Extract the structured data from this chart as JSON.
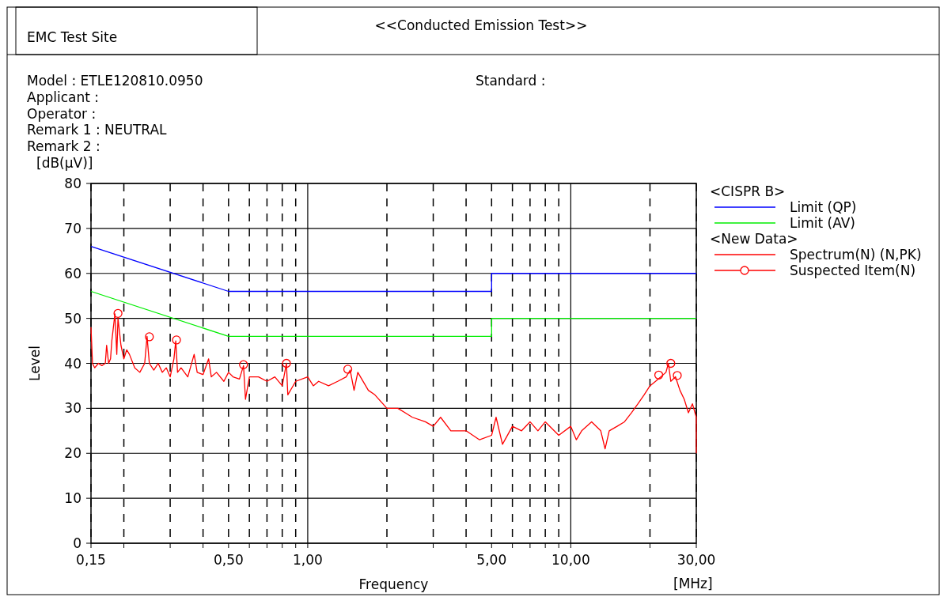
{
  "chart_data": {
    "type": "line",
    "title": "<<Conducted Emission Test>>",
    "xlabel": "Frequency",
    "ylabel": "Level",
    "log": "x",
    "grid": true,
    "legend": "right",
    "xlim": [
      0.15,
      30
    ],
    "ylim": [
      0,
      80
    ],
    "xticks": [
      {
        "value": 0.15,
        "label": "0,15"
      },
      {
        "value": 0.2,
        "label": null
      },
      {
        "value": 0.3,
        "label": null
      },
      {
        "value": 0.4,
        "label": null
      },
      {
        "value": 0.5,
        "label": "0,50"
      },
      {
        "value": 0.6,
        "label": null
      },
      {
        "value": 0.7,
        "label": null
      },
      {
        "value": 0.8,
        "label": null
      },
      {
        "value": 0.9,
        "label": null
      },
      {
        "value": 1,
        "label": "1,00"
      },
      {
        "value": 2,
        "label": null
      },
      {
        "value": 3,
        "label": null
      },
      {
        "value": 4,
        "label": null
      },
      {
        "value": 5,
        "label": "5,00"
      },
      {
        "value": 6,
        "label": null
      },
      {
        "value": 7,
        "label": null
      },
      {
        "value": 8,
        "label": null
      },
      {
        "value": 9,
        "label": null
      },
      {
        "value": 10,
        "label": "10,00"
      },
      {
        "value": 20,
        "label": null
      },
      {
        "value": 30,
        "label": "30,00"
      }
    ],
    "yticks": [
      0,
      10,
      20,
      30,
      40,
      50,
      60,
      70,
      80
    ],
    "annotations": [
      "EMC Test Site",
      "Model : ETLE120810.0950",
      "Applicant :",
      "Operator :",
      "Remark 1 : NEUTRAL",
      "Remark 2 :",
      "Standard :",
      "[dB(μV)]",
      "[MHz]",
      "<CISPR B>",
      "<New Data>"
    ],
    "series": [
      {
        "name": "Limit (QP)",
        "color": "#0000ff",
        "x": [
          0.15,
          0.5,
          5,
          5,
          30
        ],
        "values": [
          66,
          56,
          56,
          60,
          60
        ]
      },
      {
        "name": "Limit (AV)",
        "color": "#00ee00",
        "x": [
          0.15,
          0.5,
          5,
          5,
          30
        ],
        "values": [
          56,
          46,
          46,
          50,
          50
        ]
      },
      {
        "name": "Spectrum(N) (N,PK)",
        "color": "#ff0000",
        "x": [
          0.15,
          0.152,
          0.155,
          0.16,
          0.165,
          0.17,
          0.172,
          0.175,
          0.178,
          0.18,
          0.185,
          0.188,
          0.19,
          0.195,
          0.2,
          0.205,
          0.21,
          0.22,
          0.23,
          0.24,
          0.245,
          0.25,
          0.26,
          0.27,
          0.28,
          0.29,
          0.3,
          0.31,
          0.315,
          0.32,
          0.33,
          0.35,
          0.37,
          0.38,
          0.4,
          0.42,
          0.43,
          0.45,
          0.48,
          0.5,
          0.52,
          0.55,
          0.57,
          0.58,
          0.6,
          0.65,
          0.7,
          0.75,
          0.8,
          0.83,
          0.84,
          0.9,
          1.0,
          1.05,
          1.1,
          1.2,
          1.3,
          1.4,
          1.45,
          1.5,
          1.55,
          1.7,
          1.8,
          2.0,
          2.2,
          2.5,
          2.8,
          3.0,
          3.2,
          3.5,
          4.0,
          4.5,
          5.0,
          5.2,
          5.5,
          6.0,
          6.5,
          7.0,
          7.5,
          8.0,
          9.0,
          10,
          10.5,
          11,
          12,
          13,
          13.5,
          14,
          15,
          16,
          17,
          18,
          19,
          20,
          21,
          22,
          23,
          23.5,
          24,
          25,
          26,
          27,
          28,
          29,
          30,
          30
        ],
        "values": [
          48,
          40,
          39,
          40,
          39.5,
          40,
          44,
          40,
          41,
          45,
          51,
          42,
          50,
          44,
          41,
          43,
          42,
          39,
          38,
          40,
          46,
          40,
          38.5,
          40,
          38,
          39,
          37,
          41,
          45,
          38,
          39,
          37,
          42,
          38,
          37.5,
          41,
          37,
          38,
          36,
          38,
          37,
          36.5,
          39.5,
          32,
          37,
          37,
          36,
          37,
          35,
          40,
          33,
          36,
          37,
          35,
          36,
          35,
          36,
          37,
          38.5,
          34,
          38,
          34,
          33,
          30,
          30,
          28,
          27,
          26,
          28,
          25,
          25,
          23,
          24,
          28,
          22,
          26,
          25,
          27,
          25,
          27,
          24,
          26,
          23,
          25,
          27,
          25,
          21,
          25,
          26,
          27,
          29,
          31,
          33,
          35,
          36,
          37,
          38,
          40,
          36,
          37,
          34,
          32,
          29,
          31,
          28,
          20
        ]
      },
      {
        "name": "Suspected Item(N)",
        "type": "scatter",
        "marker": "circle",
        "color": "#ff0000",
        "x": [
          0.19,
          0.25,
          0.317,
          0.57,
          0.83,
          1.42,
          21.6,
          24,
          25.4
        ],
        "values": [
          51.1,
          45.9,
          45.2,
          39.7,
          40,
          38.7,
          37.4,
          40,
          37.3
        ]
      }
    ]
  }
}
